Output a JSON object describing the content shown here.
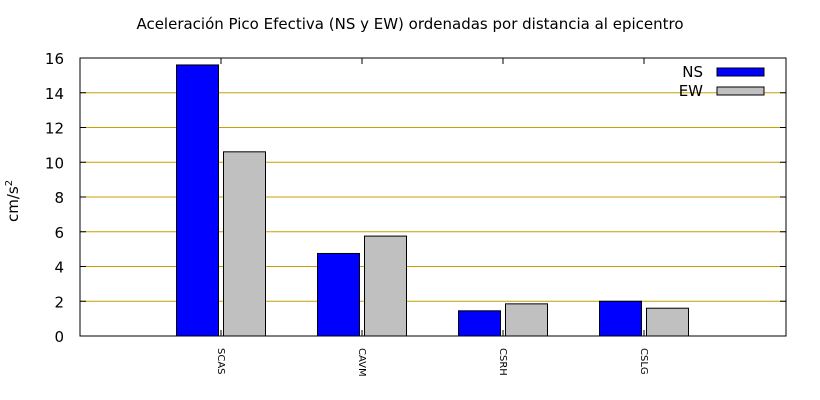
{
  "chart_data": {
    "type": "bar",
    "title": "Aceleración Pico Efectiva (NS y EW) ordenadas por distancia al epicentro",
    "xlabel": "",
    "ylabel": "cm/s",
    "ylabel_superscript": "2",
    "categories": [
      "SCAS",
      "CAVM",
      "CSRH",
      "CSLG"
    ],
    "series": [
      {
        "name": "NS",
        "color": "#0000ff",
        "values": [
          15.6,
          4.75,
          1.45,
          2.0
        ]
      },
      {
        "name": "EW",
        "color": "#c0c0c0",
        "values": [
          10.6,
          5.75,
          1.85,
          1.6
        ]
      }
    ],
    "ylim": [
      0,
      16
    ],
    "yticks": [
      0,
      2,
      4,
      6,
      8,
      10,
      12,
      14,
      16
    ],
    "grid": {
      "y": true,
      "color": "#c8a000"
    },
    "legend": "top-right"
  }
}
